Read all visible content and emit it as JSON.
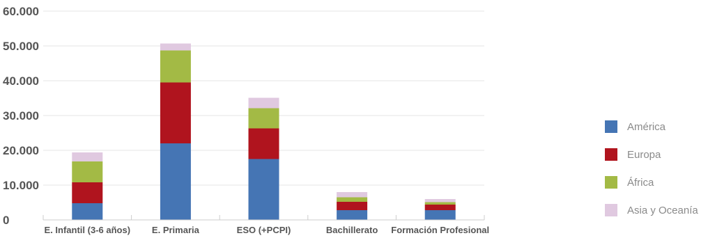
{
  "chart_data": {
    "type": "bar",
    "stacked": true,
    "categories": [
      "E. Infantil (3-6 años)",
      "E. Primaria",
      "ESO (+PCPI)",
      "Bachillerato",
      "Formación Profesional"
    ],
    "series": [
      {
        "name": "América",
        "color": "#4575b4",
        "values": [
          4800,
          22000,
          17500,
          2800,
          2800
        ]
      },
      {
        "name": "Europa",
        "color": "#b0141e",
        "values": [
          6000,
          17500,
          8800,
          2400,
          1600
        ]
      },
      {
        "name": "África",
        "color": "#a3ba45",
        "values": [
          6000,
          9200,
          5800,
          1300,
          700
        ]
      },
      {
        "name": "Asia y Oceanía",
        "color": "#e0c9e0",
        "values": [
          2600,
          2000,
          3000,
          1500,
          900
        ]
      }
    ],
    "yticks": [
      "0",
      "10.000",
      "20.000",
      "30.000",
      "40.000",
      "50.000",
      "60.000"
    ],
    "ylim": [
      0,
      60000
    ],
    "grid": true,
    "legend_position": "right"
  }
}
